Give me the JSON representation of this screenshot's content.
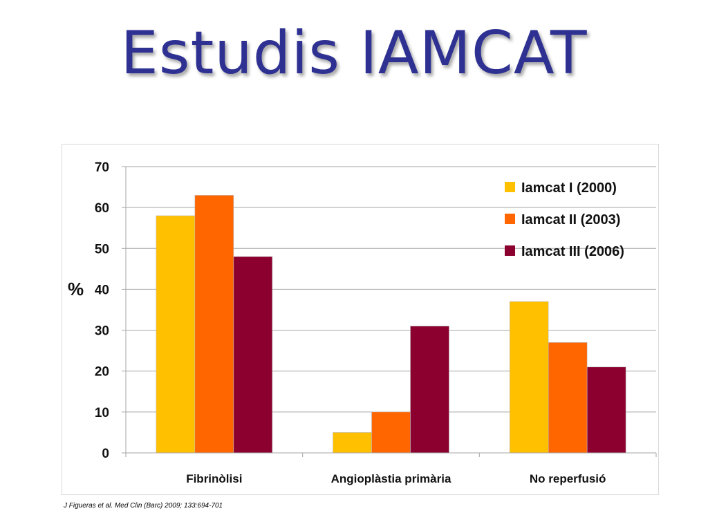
{
  "slide": {
    "title": "Estudis IAMCAT"
  },
  "citation": "J Figueras et al. Med Clin (Barc) 2009; 133:694-701",
  "chart_data": {
    "type": "bar",
    "title": "",
    "xlabel": "",
    "ylabel": "%",
    "ylim": [
      0,
      70
    ],
    "yticks": [
      "0",
      "10",
      "20",
      "30",
      "40",
      "50",
      "60",
      "70"
    ],
    "grid": true,
    "legend_position": "top-right",
    "categories": [
      "Fibrinòlisi",
      "Angioplàstia primària",
      "No reperfusió"
    ],
    "series": [
      {
        "name": "Iamcat I (2000)",
        "color": "#ffc000",
        "values": [
          58,
          5,
          37
        ]
      },
      {
        "name": "Iamcat II (2003)",
        "color": "#ff6600",
        "values": [
          63,
          10,
          27
        ]
      },
      {
        "name": "Iamcat III (2006)",
        "color": "#8b002e",
        "values": [
          48,
          31,
          21
        ]
      }
    ]
  }
}
